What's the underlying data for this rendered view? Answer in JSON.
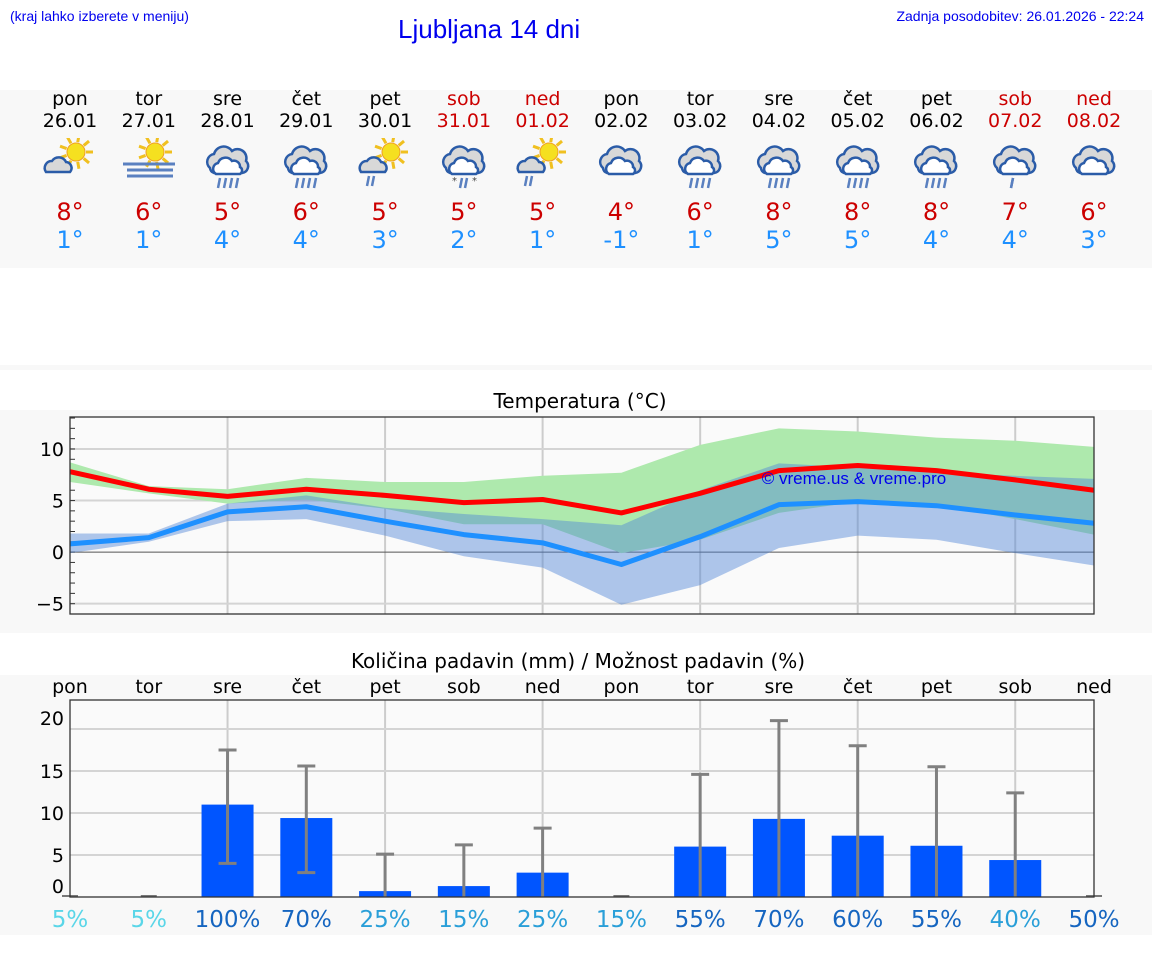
{
  "header": {
    "hint": "(kraj lahko izberete v meniju)",
    "title": "Ljubljana 14 dni",
    "updated": "Zadnja posodobitev: 26.01.2026 - 22:24"
  },
  "days": [
    {
      "name": "pon",
      "date": "26.01",
      "icon": "sun-cloud-icon",
      "max": "8°",
      "min": "1°",
      "weekend": false
    },
    {
      "name": "tor",
      "date": "27.01",
      "icon": "sun-fog-icon",
      "max": "6°",
      "min": "1°",
      "weekend": false
    },
    {
      "name": "sre",
      "date": "28.01",
      "icon": "rain-cloud-icon",
      "max": "5°",
      "min": "4°",
      "weekend": false
    },
    {
      "name": "čet",
      "date": "29.01",
      "icon": "rain-cloud-icon",
      "max": "6°",
      "min": "4°",
      "weekend": false
    },
    {
      "name": "pet",
      "date": "30.01",
      "icon": "sun-rain-icon",
      "max": "5°",
      "min": "3°",
      "weekend": false
    },
    {
      "name": "sob",
      "date": "31.01",
      "icon": "sleet-cloud-icon",
      "max": "5°",
      "min": "2°",
      "weekend": true
    },
    {
      "name": "ned",
      "date": "01.02",
      "icon": "sun-rain-icon",
      "max": "5°",
      "min": "1°",
      "weekend": true
    },
    {
      "name": "pon",
      "date": "02.02",
      "icon": "cloud-icon",
      "max": "4°",
      "min": "-1°",
      "weekend": false
    },
    {
      "name": "tor",
      "date": "03.02",
      "icon": "rain-cloud-icon",
      "max": "6°",
      "min": "1°",
      "weekend": false
    },
    {
      "name": "sre",
      "date": "04.02",
      "icon": "rain-cloud-icon",
      "max": "8°",
      "min": "5°",
      "weekend": false
    },
    {
      "name": "čet",
      "date": "05.02",
      "icon": "rain-cloud-icon",
      "max": "8°",
      "min": "5°",
      "weekend": false
    },
    {
      "name": "pet",
      "date": "06.02",
      "icon": "rain-cloud-icon",
      "max": "8°",
      "min": "4°",
      "weekend": false
    },
    {
      "name": "sob",
      "date": "07.02",
      "icon": "light-rain-cloud-icon",
      "max": "7°",
      "min": "4°",
      "weekend": true
    },
    {
      "name": "ned",
      "date": "08.02",
      "icon": "cloud-icon",
      "max": "6°",
      "min": "3°",
      "weekend": true
    }
  ],
  "chart_data": [
    {
      "type": "line",
      "title": "Temperatura (°C)",
      "ylim": [
        -6,
        13.1
      ],
      "yticks": [
        10,
        5,
        0,
        -5
      ],
      "ytick_labels": [
        "10",
        "5",
        "0",
        "−5"
      ],
      "grid": true,
      "watermark": "© vreme.us & vreme.pro",
      "colors": {
        "max": "#ff0000",
        "min": "#1e90ff",
        "max_band": "#aee9ad",
        "min_band": "#afc8f2",
        "overlap": "#7fc8a8"
      },
      "x": [
        "26.01",
        "27.01",
        "28.01",
        "29.01",
        "30.01",
        "31.01",
        "01.02",
        "02.02",
        "03.02",
        "04.02",
        "05.02",
        "06.02",
        "07.02",
        "08.02"
      ],
      "series": [
        {
          "key": "max",
          "values": [
            7.8,
            6.1,
            5.4,
            6.1,
            5.5,
            4.8,
            5.1,
            3.8,
            5.7,
            7.9,
            8.4,
            7.9,
            7.0,
            6.0
          ]
        },
        {
          "key": "min",
          "values": [
            0.8,
            1.4,
            3.9,
            4.4,
            3.0,
            1.7,
            0.9,
            -1.2,
            1.5,
            4.6,
            4.9,
            4.5,
            3.6,
            2.8
          ]
        },
        {
          "key": "max_band",
          "upper": [
            8.7,
            6.4,
            6.1,
            7.2,
            6.8,
            6.8,
            7.4,
            7.7,
            10.4,
            12.0,
            11.7,
            11.1,
            10.8,
            10.2
          ],
          "lower": [
            6.8,
            5.7,
            4.7,
            5.1,
            4.2,
            2.7,
            2.7,
            -0.1,
            1.2,
            3.8,
            4.9,
            4.6,
            3.2,
            1.7
          ]
        },
        {
          "key": "min_band",
          "upper": [
            1.8,
            1.8,
            4.7,
            5.5,
            4.3,
            3.7,
            3.2,
            2.6,
            6.0,
            8.6,
            8.2,
            7.7,
            7.4,
            7.1
          ],
          "lower": [
            -0.1,
            1.0,
            3.0,
            3.2,
            1.6,
            -0.4,
            -1.5,
            -5.1,
            -3.2,
            0.4,
            1.6,
            1.2,
            -0.1,
            -1.3
          ]
        }
      ]
    },
    {
      "type": "bar",
      "title": "Količina padavin (mm) / Možnost padavin (%)",
      "ylim": [
        0,
        21.5
      ],
      "yticks": [
        20,
        15,
        10,
        5,
        0
      ],
      "grid": true,
      "categories": [
        "pon",
        "tor",
        "sre",
        "čet",
        "pet",
        "sob",
        "ned",
        "pon",
        "tor",
        "sre",
        "čet",
        "pet",
        "sob",
        "ned"
      ],
      "values": [
        0,
        0,
        11.0,
        9.4,
        0.7,
        1.3,
        2.9,
        0,
        6.0,
        9.3,
        7.3,
        6.1,
        4.4,
        0
      ],
      "error_low": [
        0,
        0,
        4.0,
        2.9,
        0,
        0,
        0,
        0,
        0,
        0,
        0,
        0,
        0,
        0
      ],
      "error_high": [
        0,
        0,
        17.5,
        15.6,
        5.1,
        6.2,
        8.2,
        0,
        14.6,
        21.0,
        18.0,
        15.5,
        12.4,
        0
      ],
      "probability": [
        "5%",
        "5%",
        "100%",
        "70%",
        "25%",
        "15%",
        "25%",
        "15%",
        "55%",
        "70%",
        "60%",
        "55%",
        "40%",
        "50%"
      ],
      "probability_colors": [
        "#5ad6e8",
        "#5ad6e8",
        "#1565c0",
        "#1565c0",
        "#2a9fd8",
        "#2a9fd8",
        "#2a9fd8",
        "#2a9fd8",
        "#1565c0",
        "#1565c0",
        "#1565c0",
        "#1565c0",
        "#2a9fd8",
        "#1565c0"
      ],
      "colors": {
        "bar": "#0055ff",
        "error": "#808080"
      }
    }
  ]
}
